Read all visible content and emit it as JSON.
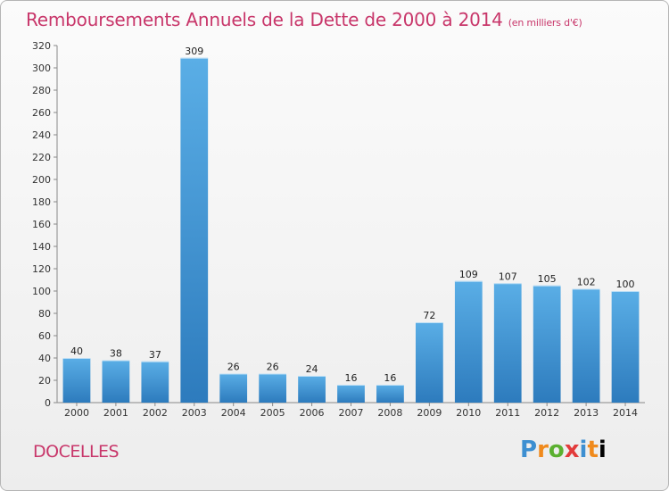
{
  "header": {
    "title": "Remboursements Annuels de la Dette de 2000 à 2014",
    "subtitle": "(en milliers d'€)"
  },
  "footer": {
    "commune": "DOCELLES",
    "logo_letters": [
      "P",
      "r",
      "o",
      "x",
      "i",
      "t",
      "i"
    ]
  },
  "colors": {
    "title": "#c8366a",
    "bar_top": "#5aaee6",
    "bar_bottom": "#2d7bbd"
  },
  "chart_data": {
    "type": "bar",
    "categories": [
      "2000",
      "2001",
      "2002",
      "2003",
      "2004",
      "2005",
      "2006",
      "2007",
      "2008",
      "2009",
      "2010",
      "2011",
      "2012",
      "2013",
      "2014"
    ],
    "values": [
      40,
      38,
      37,
      309,
      26,
      26,
      24,
      16,
      16,
      72,
      109,
      107,
      105,
      102,
      100
    ],
    "ylim": [
      0,
      320
    ],
    "yticks": [
      0,
      20,
      40,
      60,
      80,
      100,
      120,
      140,
      160,
      180,
      200,
      220,
      240,
      260,
      280,
      300,
      320
    ],
    "grid": false,
    "legend": "none"
  }
}
